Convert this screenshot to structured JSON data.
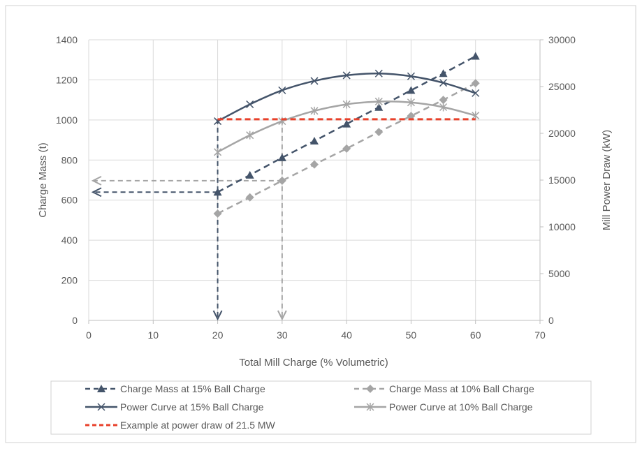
{
  "chart_data": {
    "type": "line",
    "xlabel": "Total Mill Charge (% Volumetric)",
    "ylabel": "Charge Mass (t)",
    "y2label": "Mill Power Draw (kW)",
    "xlim": [
      0,
      70
    ],
    "ylim": [
      0,
      1400
    ],
    "y2lim": [
      0,
      30000
    ],
    "xticks": [
      0,
      10,
      20,
      30,
      40,
      50,
      60,
      70
    ],
    "yticks": [
      0,
      200,
      400,
      600,
      800,
      1000,
      1200,
      1400
    ],
    "y2ticks": [
      0,
      5000,
      10000,
      15000,
      20000,
      25000,
      30000
    ],
    "grid": true,
    "legend_position": "bottom",
    "series": [
      {
        "name": "Charge Mass at 15% Ball Charge",
        "axis": "left",
        "color": "#44546A",
        "dash": true,
        "marker": "triangle",
        "x": [
          20,
          25,
          30,
          35,
          40,
          45,
          50,
          55,
          60
        ],
        "y": [
          640,
          725,
          812,
          895,
          980,
          1063,
          1148,
          1232,
          1318
        ]
      },
      {
        "name": "Charge Mass at 10% Ball Charge",
        "axis": "left",
        "color": "#A5A5A5",
        "dash": true,
        "marker": "diamond",
        "x": [
          20,
          25,
          30,
          35,
          40,
          45,
          50,
          55,
          60
        ],
        "y": [
          533,
          614,
          697,
          778,
          857,
          940,
          1020,
          1100,
          1183
        ]
      },
      {
        "name": "Power Curve at 15% Ball Charge",
        "axis": "right",
        "color": "#44546A",
        "dash": false,
        "marker": "x",
        "x": [
          20,
          25,
          30,
          35,
          40,
          45,
          50,
          55,
          60
        ],
        "y": [
          21300,
          23100,
          24600,
          25600,
          26200,
          26400,
          26100,
          25400,
          24300
        ]
      },
      {
        "name": "Power Curve at 10% Ball Charge",
        "axis": "right",
        "color": "#A5A5A5",
        "dash": false,
        "marker": "star",
        "x": [
          20,
          25,
          30,
          35,
          40,
          45,
          50,
          55,
          60
        ],
        "y": [
          18000,
          19800,
          21300,
          22400,
          23100,
          23400,
          23300,
          22800,
          21900
        ]
      },
      {
        "name": "Example at power draw of 21.5 MW",
        "axis": "right",
        "color": "#E8402A",
        "dash": true,
        "marker": "none",
        "x": [
          20,
          60
        ],
        "y": [
          21500,
          21500
        ]
      }
    ],
    "guides": [
      {
        "color": "#44546A",
        "from_x": 20,
        "power_kw": 21500,
        "down_to_x_axis": true,
        "left_at_mass": 640
      },
      {
        "color": "#A5A5A5",
        "from_x": 30,
        "power_kw": 21500,
        "down_to_x_axis": true,
        "left_at_mass": 697
      }
    ]
  }
}
